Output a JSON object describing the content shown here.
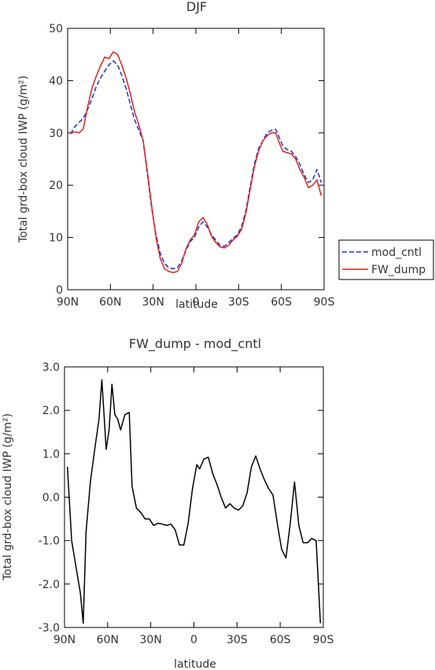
{
  "chart_data": [
    {
      "type": "line",
      "title": "DJF",
      "xlabel": "latitude",
      "ylabel": "Total grd-box cloud IWP (g/m²)",
      "xlim": [
        90,
        -90
      ],
      "ylim": [
        0,
        50
      ],
      "x_ticks": [
        90,
        60,
        30,
        0,
        -30,
        -60,
        -90
      ],
      "x_tick_labels": [
        "90N",
        "60N",
        "30N",
        "0",
        "30S",
        "60S",
        "90S"
      ],
      "y_ticks": [
        0,
        10,
        20,
        30,
        40,
        50
      ],
      "y_tick_labels": [
        "0",
        "10",
        "20",
        "30",
        "40",
        "50"
      ],
      "legend": {
        "position": "right"
      },
      "series": [
        {
          "name": "mod_cntl",
          "color": "#1f2fc8",
          "dash": "dashed",
          "x": [
            88,
            85,
            82,
            79,
            76,
            73,
            70,
            67,
            64,
            61,
            58,
            55,
            52,
            49,
            46,
            43,
            40,
            37,
            34,
            31,
            28,
            25,
            22,
            19,
            16,
            13,
            10,
            7,
            4,
            1,
            -2,
            -5,
            -8,
            -11,
            -14,
            -17,
            -20,
            -23,
            -26,
            -29,
            -32,
            -35,
            -38,
            -41,
            -44,
            -47,
            -50,
            -53,
            -56,
            -58,
            -61,
            -64,
            -67,
            -70,
            -73,
            -76,
            -79,
            -82,
            -85,
            -88
          ],
          "y": [
            29.8,
            31.2,
            32.0,
            32.8,
            34.5,
            36.5,
            38.8,
            40.5,
            41.8,
            43.0,
            43.8,
            43.0,
            41.0,
            38.5,
            35.5,
            32.5,
            30.5,
            28.5,
            22.0,
            15.5,
            10.5,
            7.0,
            5.0,
            4.2,
            4.0,
            4.2,
            5.5,
            7.5,
            9.2,
            10.0,
            12.0,
            13.0,
            12.0,
            10.5,
            9.5,
            8.5,
            8.3,
            9.0,
            9.8,
            10.5,
            12.0,
            15.0,
            19.5,
            24.0,
            27.0,
            28.5,
            30.0,
            30.5,
            30.7,
            29.5,
            27.5,
            26.8,
            26.5,
            25.5,
            24.0,
            22.0,
            20.5,
            21.0,
            23.0,
            20.5
          ]
        },
        {
          "name": "FW_dump",
          "color": "#e02020",
          "dash": "solid",
          "x": [
            88,
            85,
            82,
            79,
            76,
            73,
            70,
            67,
            64,
            61,
            58,
            55,
            52,
            49,
            46,
            43,
            40,
            37,
            34,
            31,
            28,
            25,
            22,
            19,
            16,
            13,
            10,
            7,
            4,
            1,
            -2,
            -5,
            -8,
            -11,
            -14,
            -17,
            -20,
            -23,
            -26,
            -29,
            -32,
            -35,
            -38,
            -41,
            -44,
            -47,
            -50,
            -53,
            -56,
            -58,
            -61,
            -64,
            -67,
            -70,
            -73,
            -76,
            -79,
            -82,
            -85,
            -88
          ],
          "y": [
            30.0,
            30.2,
            30.0,
            30.8,
            35.0,
            38.5,
            40.8,
            42.8,
            44.5,
            44.2,
            45.5,
            45.0,
            43.0,
            40.5,
            37.5,
            34.0,
            31.5,
            28.5,
            22.5,
            16.0,
            10.0,
            6.0,
            4.0,
            3.5,
            3.3,
            3.5,
            5.0,
            7.8,
            9.5,
            10.5,
            13.0,
            13.8,
            12.5,
            10.2,
            9.0,
            8.2,
            8.0,
            8.5,
            9.5,
            10.2,
            11.5,
            14.5,
            19.0,
            23.5,
            26.5,
            28.5,
            29.5,
            30.0,
            30.0,
            28.5,
            26.5,
            26.2,
            26.0,
            25.0,
            23.0,
            21.5,
            19.5,
            20.0,
            21.0,
            18.0
          ]
        }
      ]
    },
    {
      "type": "line",
      "title": "FW_dump - mod_cntl",
      "xlabel": "latitude",
      "ylabel": "Total grd-box cloud IWP (g/m²)",
      "xlim": [
        90,
        -90
      ],
      "ylim": [
        -3.0,
        3.0
      ],
      "x_ticks": [
        90,
        60,
        30,
        0,
        -30,
        -60,
        -90
      ],
      "x_tick_labels": [
        "90N",
        "60N",
        "30N",
        "0",
        "30S",
        "60S",
        "90S"
      ],
      "y_ticks": [
        -3,
        -2,
        -1,
        0,
        1,
        2,
        3
      ],
      "y_tick_labels": [
        "-3.0",
        "-2.0",
        "-1.0",
        "0.0",
        "1.0",
        "2.0",
        "3.0"
      ],
      "series": [
        {
          "color": "#000000",
          "x": [
            88,
            85,
            82,
            79,
            77,
            75,
            72,
            69,
            66,
            64,
            61,
            59,
            57,
            55,
            53,
            51,
            48,
            45,
            43,
            40,
            37,
            34,
            31,
            28,
            25,
            22,
            19,
            16,
            13,
            10,
            7,
            4,
            1,
            -2,
            -4,
            -7,
            -10,
            -13,
            -16,
            -19,
            -22,
            -25,
            -28,
            -31,
            -34,
            -37,
            -40,
            -43,
            -46,
            -49,
            -52,
            -55,
            -58,
            -61,
            -64,
            -67,
            -70,
            -73,
            -76,
            -79,
            -82,
            -85,
            -88
          ],
          "y": [
            0.7,
            -1.0,
            -1.6,
            -2.2,
            -2.9,
            -0.8,
            0.35,
            1.1,
            1.8,
            2.7,
            1.1,
            1.55,
            2.6,
            1.9,
            1.8,
            1.55,
            1.9,
            1.95,
            0.25,
            -0.25,
            -0.35,
            -0.5,
            -0.5,
            -0.65,
            -0.6,
            -0.62,
            -0.65,
            -0.62,
            -0.75,
            -1.1,
            -1.1,
            -0.6,
            0.2,
            0.75,
            0.65,
            0.88,
            0.92,
            0.55,
            0.3,
            0.0,
            -0.25,
            -0.15,
            -0.25,
            -0.3,
            -0.2,
            0.1,
            0.7,
            0.95,
            0.65,
            0.4,
            0.2,
            0.05,
            -0.6,
            -1.2,
            -1.4,
            -0.6,
            0.35,
            -0.65,
            -1.05,
            -1.05,
            -0.95,
            -1.0,
            -2.9
          ]
        }
      ]
    }
  ]
}
